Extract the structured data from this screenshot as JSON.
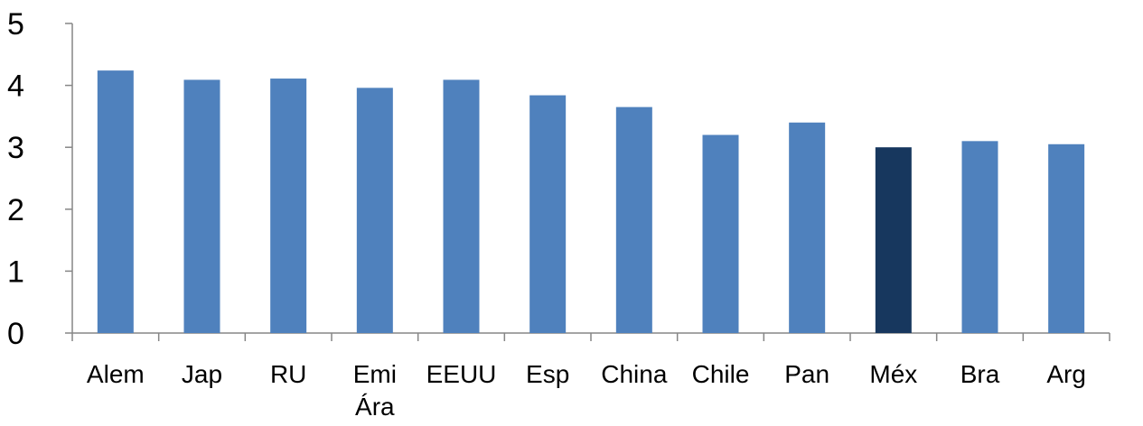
{
  "chart_data": {
    "type": "bar",
    "title": "",
    "xlabel": "",
    "ylabel": "",
    "ylim": [
      0,
      5
    ],
    "yticks": [
      "0",
      "1",
      "2",
      "3",
      "4",
      "5"
    ],
    "grid": false,
    "legend": "none",
    "categories": [
      [
        "Alem"
      ],
      [
        "Jap"
      ],
      [
        "RU"
      ],
      [
        "Emi",
        "Ára"
      ],
      [
        "EEUU"
      ],
      [
        "Esp"
      ],
      [
        "China"
      ],
      [
        "Chile"
      ],
      [
        "Pan"
      ],
      [
        "Méx"
      ],
      [
        "Bra"
      ],
      [
        "Arg"
      ]
    ],
    "values": [
      4.24,
      4.09,
      4.11,
      3.96,
      4.09,
      3.84,
      3.65,
      3.2,
      3.4,
      3.0,
      3.1,
      3.05
    ],
    "highlight_index": 9,
    "colors": {
      "bar": "#4F81BD",
      "highlight": "#17375E",
      "axis": "#868686"
    }
  }
}
